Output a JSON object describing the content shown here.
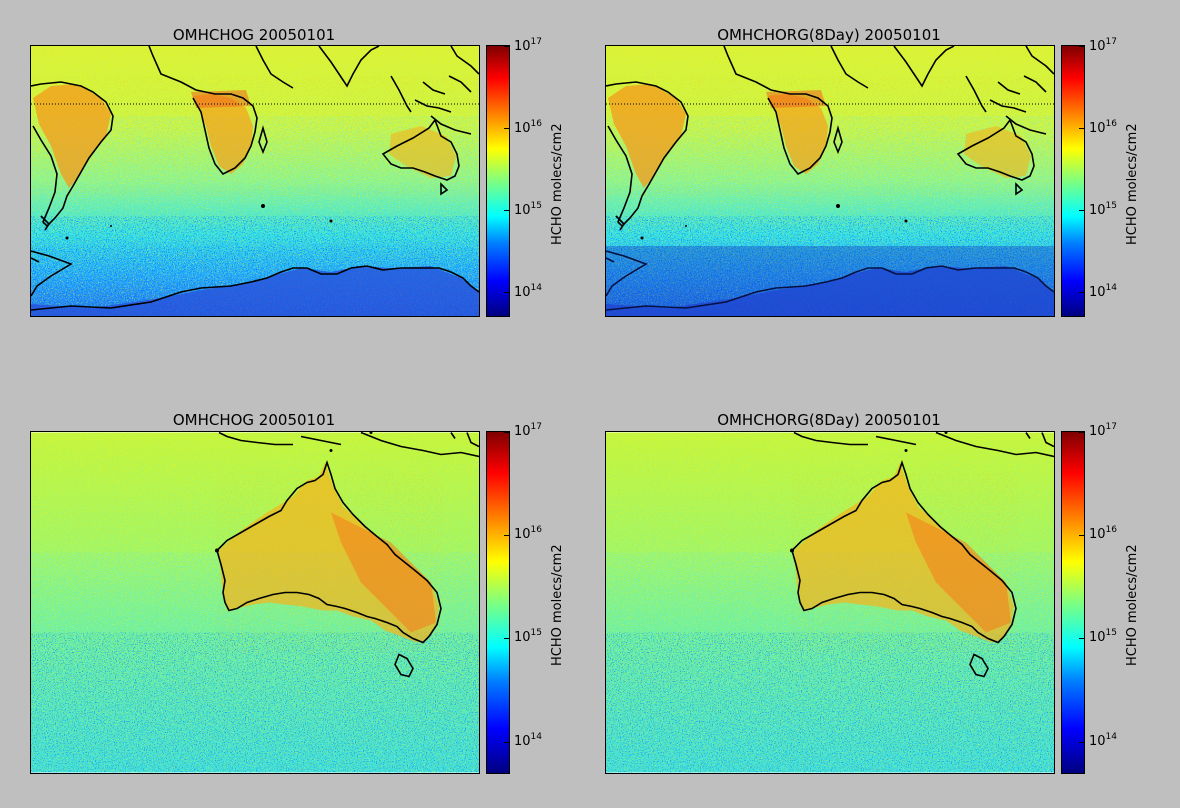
{
  "figure": {
    "background": "#bfbfbf",
    "colormap": "jet",
    "panels": [
      {
        "id": "top-left",
        "title": "OMHCHOG 20050101",
        "region": "global-south",
        "colorbar": {
          "label": "HCHO molecs/cm2",
          "scale": "log",
          "ticks": [
            {
              "base": "10",
              "exp": "17"
            },
            {
              "base": "10",
              "exp": "16"
            },
            {
              "base": "10",
              "exp": "15"
            },
            {
              "base": "10",
              "exp": "14"
            }
          ]
        }
      },
      {
        "id": "top-right",
        "title": "OMHCHORG(8Day) 20050101",
        "region": "global-south",
        "colorbar": {
          "label": "HCHO molecs/cm2",
          "scale": "log",
          "ticks": [
            {
              "base": "10",
              "exp": "17"
            },
            {
              "base": "10",
              "exp": "16"
            },
            {
              "base": "10",
              "exp": "15"
            },
            {
              "base": "10",
              "exp": "14"
            }
          ]
        }
      },
      {
        "id": "bottom-left",
        "title": "OMHCHOG 20050101",
        "region": "australia",
        "colorbar": {
          "label": "HCHO molecs/cm2",
          "scale": "log",
          "ticks": [
            {
              "base": "10",
              "exp": "17"
            },
            {
              "base": "10",
              "exp": "16"
            },
            {
              "base": "10",
              "exp": "15"
            },
            {
              "base": "10",
              "exp": "14"
            }
          ]
        }
      },
      {
        "id": "bottom-right",
        "title": "OMHCHORG(8Day) 20050101",
        "region": "australia",
        "colorbar": {
          "label": "HCHO molecs/cm2",
          "scale": "log",
          "ticks": [
            {
              "base": "10",
              "exp": "17"
            },
            {
              "base": "10",
              "exp": "16"
            },
            {
              "base": "10",
              "exp": "15"
            },
            {
              "base": "10",
              "exp": "14"
            }
          ]
        }
      }
    ]
  }
}
